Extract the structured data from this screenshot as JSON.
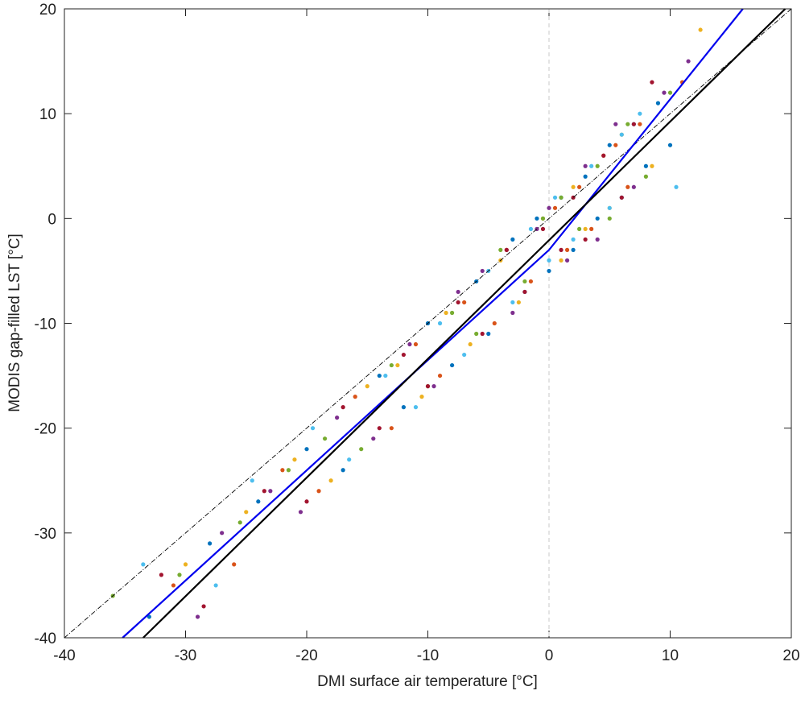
{
  "chart_data": {
    "type": "scatter",
    "x_label": "DMI surface air temperature [°C]",
    "y_label": "MODIS gap-filled LST [°C]",
    "xlim": [
      -40,
      20
    ],
    "ylim": [
      -40,
      20
    ],
    "xticks": [
      -40,
      -30,
      -20,
      -10,
      0,
      10,
      20
    ],
    "yticks": [
      -40,
      -30,
      -20,
      -10,
      0,
      10,
      20
    ],
    "vline": {
      "x": 0,
      "color": "#c8c8c8"
    },
    "lines": [
      {
        "color": "#000000",
        "style": "dashdot",
        "x": [
          -40,
          20
        ],
        "y": [
          -40,
          20
        ]
      },
      {
        "color": "#0000ee",
        "style": "solid",
        "x": [
          -35.2,
          0,
          16
        ],
        "y": [
          -40,
          -3,
          20
        ]
      },
      {
        "color": "#000000",
        "style": "solid",
        "x": [
          -33.5,
          19.5
        ],
        "y": [
          -40,
          20
        ]
      }
    ],
    "series": [
      {
        "color": "#0072bd",
        "x": [
          -33,
          -28,
          -24,
          -20,
          -17,
          -14,
          -12,
          -10,
          -8,
          -6,
          -5,
          -3,
          -2,
          -1,
          0,
          1,
          2,
          3,
          4,
          5,
          6,
          7,
          8,
          9,
          10
        ],
        "y": [
          -38,
          -31,
          -27,
          -22,
          -24,
          -15,
          -18,
          -10,
          -14,
          -6,
          -11,
          -2,
          -7,
          0,
          -5,
          2,
          -3,
          4,
          0,
          7,
          2,
          9,
          5,
          11,
          7
        ]
      },
      {
        "color": "#d95319",
        "x": [
          -31,
          -26,
          -22,
          -19,
          -16,
          -13,
          -11,
          -9,
          -7,
          -4.5,
          -3.5,
          -1.5,
          0.5,
          1.5,
          2.5,
          3.5,
          5.5,
          6.5,
          7.5,
          11
        ],
        "y": [
          -35,
          -33,
          -24,
          -26,
          -17,
          -20,
          -12,
          -15,
          -8,
          -10,
          -3,
          -6,
          1,
          -3,
          3,
          -1,
          7,
          3,
          9,
          13
        ]
      },
      {
        "color": "#edb120",
        "x": [
          -30,
          -25,
          -21,
          -18,
          -15,
          -12.5,
          -10.5,
          -8.5,
          -6.5,
          -4,
          -2.5,
          -0.5,
          1,
          2,
          3,
          4.5,
          5,
          6,
          8.5,
          12.5
        ],
        "y": [
          -33,
          -28,
          -23,
          -25,
          -16,
          -14,
          -17,
          -9,
          -12,
          -4,
          -8,
          0,
          -4,
          3,
          -1,
          6,
          1,
          8,
          5,
          18
        ]
      },
      {
        "color": "#7e2f8e",
        "x": [
          -29,
          -27,
          -23,
          -20.5,
          -17.5,
          -14.5,
          -11.5,
          -9.5,
          -7.5,
          -5.5,
          -3,
          -1,
          0,
          1.5,
          3,
          4,
          5.5,
          7,
          9.5,
          11.5
        ],
        "y": [
          -38,
          -30,
          -26,
          -28,
          -19,
          -21,
          -12,
          -16,
          -7,
          -5,
          -9,
          -1,
          1,
          -4,
          5,
          -2,
          9,
          3,
          12,
          15
        ]
      },
      {
        "color": "#77ac30",
        "x": [
          -36,
          -30.5,
          -25.5,
          -21.5,
          -18.5,
          -15.5,
          -13,
          -10,
          -8,
          -6,
          -4,
          -2,
          -0.5,
          1,
          2.5,
          4,
          5,
          6.5,
          8,
          10
        ],
        "y": [
          -36,
          -34,
          -29,
          -24,
          -21,
          -22,
          -14,
          -16,
          -9,
          -11,
          -3,
          -6,
          0,
          2,
          -1,
          5,
          0,
          9,
          4,
          12
        ]
      },
      {
        "color": "#4dbeee",
        "x": [
          -33.5,
          -27.5,
          -24.5,
          -19.5,
          -16.5,
          -13.5,
          -11,
          -9,
          -7,
          -5,
          -3,
          -1.5,
          0,
          0.5,
          2,
          3.5,
          5,
          6,
          7.5,
          10.5
        ],
        "y": [
          -33,
          -35,
          -25,
          -20,
          -23,
          -15,
          -18,
          -10,
          -13,
          -5,
          -8,
          -1,
          -4,
          2,
          -2,
          5,
          1,
          8,
          10,
          3
        ]
      },
      {
        "color": "#a2142f",
        "x": [
          -32,
          -28.5,
          -23.5,
          -20,
          -17,
          -14,
          -12,
          -10,
          -7.5,
          -5.5,
          -3.5,
          -2,
          -0.5,
          1,
          2,
          3,
          4.5,
          6,
          7,
          8.5
        ],
        "y": [
          -34,
          -37,
          -26,
          -27,
          -18,
          -20,
          -13,
          -16,
          -8,
          -11,
          -3,
          -7,
          -1,
          -3,
          2,
          -2,
          6,
          2,
          9,
          13
        ]
      }
    ]
  }
}
